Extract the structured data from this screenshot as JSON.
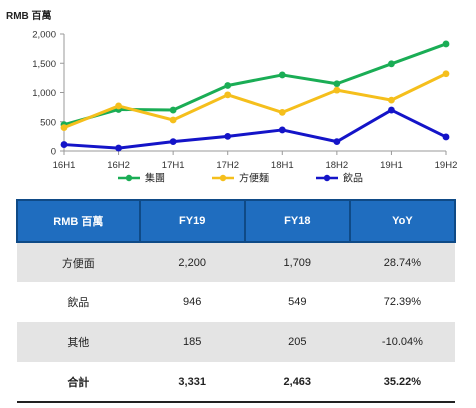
{
  "unit_label": "RMB 百萬",
  "chart_data": {
    "type": "line",
    "categories": [
      "16H1",
      "16H2",
      "17H1",
      "17H2",
      "18H1",
      "18H2",
      "19H1",
      "19H2"
    ],
    "series": [
      {
        "name": "集團",
        "color": "#1aad55",
        "values": [
          450,
          710,
          700,
          1120,
          1300,
          1150,
          1490,
          1830
        ]
      },
      {
        "name": "方便麵",
        "color": "#f5bf1c",
        "values": [
          400,
          770,
          530,
          960,
          660,
          1040,
          870,
          1320
        ]
      },
      {
        "name": "飲品",
        "color": "#1414c8",
        "values": [
          110,
          50,
          160,
          250,
          360,
          160,
          700,
          240
        ]
      }
    ],
    "yticks": [
      "2,000",
      "1,500",
      "1,000",
      "500",
      "0"
    ],
    "ylim": [
      0,
      2000
    ],
    "grid": false,
    "legend": "bottom"
  },
  "table": {
    "headers": [
      "RMB 百萬",
      "FY19",
      "FY18",
      "YoY"
    ],
    "rows": [
      [
        "方便面",
        "2,200",
        "1,709",
        "28.74%"
      ],
      [
        "飲品",
        "946",
        "549",
        "72.39%"
      ],
      [
        "其他",
        "185",
        "205",
        "-10.04%"
      ]
    ],
    "total": [
      "合計",
      "3,331",
      "2,463",
      "35.22%"
    ]
  }
}
